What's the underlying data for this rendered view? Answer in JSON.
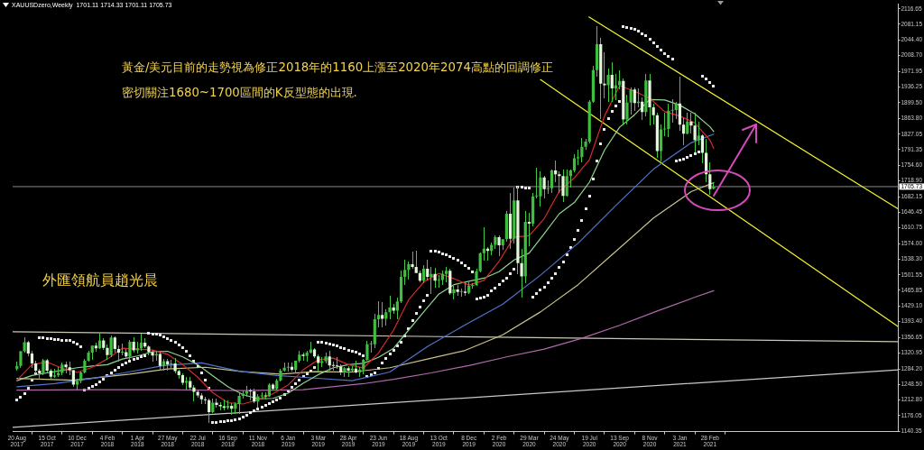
{
  "chart_data": {
    "type": "candlestick",
    "title": "XAUUSDzero,Weekly  1701.11 1714.33 1701.11 1705.73",
    "x": [
      "2017-08-20",
      "2017-08-27",
      "2017-09-03",
      "2017-09-10",
      "2017-09-17",
      "2017-09-24",
      "2017-10-01",
      "2017-10-08",
      "2017-10-15",
      "2017-10-22",
      "2017-10-29",
      "2017-11-05",
      "2017-11-12",
      "2017-11-19",
      "2017-11-26",
      "2017-12-03",
      "2017-12-10",
      "2017-12-17",
      "2017-12-24",
      "2017-12-31",
      "2018-01-07",
      "2018-01-14",
      "2018-01-21",
      "2018-01-28",
      "2018-02-04",
      "2018-02-11",
      "2018-02-18",
      "2018-02-25",
      "2018-03-04",
      "2018-03-11",
      "2018-03-18",
      "2018-03-25",
      "2018-04-01",
      "2018-04-08",
      "2018-04-15",
      "2018-04-22",
      "2018-04-29",
      "2018-05-06",
      "2018-05-13",
      "2018-05-20",
      "2018-05-27",
      "2018-06-03",
      "2018-06-10",
      "2018-06-17",
      "2018-06-24",
      "2018-07-01",
      "2018-07-08",
      "2018-07-15",
      "2018-07-22",
      "2018-07-29",
      "2018-08-05",
      "2018-08-12",
      "2018-08-19",
      "2018-08-26",
      "2018-09-02",
      "2018-09-09",
      "2018-09-16",
      "2018-09-23",
      "2018-09-30",
      "2018-10-07",
      "2018-10-14",
      "2018-10-21",
      "2018-10-28",
      "2018-11-04",
      "2018-11-11",
      "2018-11-18",
      "2018-11-25",
      "2018-12-02",
      "2018-12-09",
      "2018-12-16",
      "2018-12-23",
      "2018-12-30",
      "2019-01-06",
      "2019-01-13",
      "2019-01-20",
      "2019-01-27",
      "2019-02-03",
      "2019-02-10",
      "2019-02-17",
      "2019-02-24",
      "2019-03-03",
      "2019-03-10",
      "2019-03-17",
      "2019-03-24",
      "2019-03-31",
      "2019-04-07",
      "2019-04-14",
      "2019-04-21",
      "2019-04-28",
      "2019-05-05",
      "2019-05-12",
      "2019-05-19",
      "2019-05-26",
      "2019-06-02",
      "2019-06-09",
      "2019-06-16",
      "2019-06-23",
      "2019-06-30",
      "2019-07-07",
      "2019-07-14",
      "2019-07-21",
      "2019-07-28",
      "2019-08-04",
      "2019-08-11",
      "2019-08-18",
      "2019-08-25",
      "2019-09-01",
      "2019-09-08",
      "2019-09-15",
      "2019-09-22",
      "2019-09-29",
      "2019-10-06",
      "2019-10-13",
      "2019-10-20",
      "2019-10-27",
      "2019-11-03",
      "2019-11-10",
      "2019-11-17",
      "2019-11-24",
      "2019-12-01",
      "2019-12-08",
      "2019-12-15",
      "2019-12-22",
      "2019-12-29",
      "2020-01-05",
      "2020-01-12",
      "2020-01-19",
      "2020-01-26",
      "2020-02-02",
      "2020-02-09",
      "2020-02-16",
      "2020-02-23",
      "2020-03-01",
      "2020-03-08",
      "2020-03-15",
      "2020-03-22",
      "2020-03-29",
      "2020-04-05",
      "2020-04-12",
      "2020-04-19",
      "2020-04-26",
      "2020-05-03",
      "2020-05-10",
      "2020-05-17",
      "2020-05-24",
      "2020-05-31",
      "2020-06-07",
      "2020-06-14",
      "2020-06-21",
      "2020-06-28",
      "2020-07-05",
      "2020-07-12",
      "2020-07-19",
      "2020-07-26",
      "2020-08-02",
      "2020-08-09",
      "2020-08-16",
      "2020-08-23",
      "2020-08-30",
      "2020-09-06",
      "2020-09-13",
      "2020-09-20",
      "2020-09-27",
      "2020-10-04",
      "2020-10-11",
      "2020-10-18",
      "2020-10-25",
      "2020-11-01",
      "2020-11-08",
      "2020-11-15",
      "2020-11-22",
      "2020-11-29",
      "2020-12-06",
      "2020-12-13",
      "2020-12-20",
      "2020-12-27",
      "2021-01-03",
      "2021-01-10",
      "2021-01-17",
      "2021-01-24",
      "2021-01-31",
      "2021-02-07",
      "2021-02-14",
      "2021-02-21",
      "2021-02-28",
      "2021-03-07"
    ],
    "xlim": [
      "2017-08-12",
      "2022-02-13"
    ],
    "xticks": [
      {
        "value": "2017-08-20",
        "label": "20 Aug 2017"
      },
      {
        "value": "2017-10-15",
        "label": "15 Oct 2017"
      },
      {
        "value": "2017-12-10",
        "label": "10 Dec 2017"
      },
      {
        "value": "2018-02-04",
        "label": "4 Feb 2018"
      },
      {
        "value": "2018-04-01",
        "label": "1 Apr 2018"
      },
      {
        "value": "2018-05-27",
        "label": "27 May 2018"
      },
      {
        "value": "2018-07-22",
        "label": "22 Jul 2018"
      },
      {
        "value": "2018-09-16",
        "label": "16 Sep 2018"
      },
      {
        "value": "2018-11-11",
        "label": "11 Nov 2018"
      },
      {
        "value": "2019-01-06",
        "label": "6 Jan 2019"
      },
      {
        "value": "2019-03-03",
        "label": "3 Mar 2019"
      },
      {
        "value": "2019-04-28",
        "label": "28 Apr 2019"
      },
      {
        "value": "2019-06-23",
        "label": "23 Jun 2019"
      },
      {
        "value": "2019-08-18",
        "label": "18 Aug 2019"
      },
      {
        "value": "2019-10-13",
        "label": "13 Oct 2019"
      },
      {
        "value": "2019-12-08",
        "label": "8 Dec 2019"
      },
      {
        "value": "2020-02-02",
        "label": "2 Feb 2020"
      },
      {
        "value": "2020-03-29",
        "label": "29 Mar 2020"
      },
      {
        "value": "2020-05-24",
        "label": "24 May 2020"
      },
      {
        "value": "2020-07-19",
        "label": "19 Jul 2020"
      },
      {
        "value": "2020-09-13",
        "label": "13 Sep 2020"
      },
      {
        "value": "2020-11-08",
        "label": "8 Nov 2020"
      },
      {
        "value": "2021-01-03",
        "label": "3 Jan 2021"
      },
      {
        "value": "2021-02-28",
        "label": "28 Feb 2021"
      }
    ],
    "ylim": [
      1139,
      2127
    ],
    "yticks": [
      2116.65,
      2081.15,
      {
        "value": 2044.4,
        "label": "2044.40"
      },
      {
        "value": 2008.7,
        "label": "2008.70"
      },
      1971.95,
      1936.25,
      {
        "value": 1899.5,
        "label": "1899.50"
      },
      {
        "value": 1863.8,
        "label": "1863.80"
      },
      1827.05,
      1791.35,
      {
        "value": 1754.6,
        "label": "1754.60"
      },
      {
        "value": 1718.9,
        "label": "1718.90"
      },
      1682.15,
      1646.45,
      1610.75,
      {
        "value": 1574,
        "label": "1574.00"
      },
      {
        "value": 1538.3,
        "label": "1538.30"
      },
      1501.55,
      1465.85,
      {
        "value": 1429.1,
        "label": "1429.10"
      },
      {
        "value": 1393.4,
        "label": "1393.40"
      },
      1356.65,
      1320.95,
      {
        "value": 1284.2,
        "label": "1284.20"
      },
      {
        "value": 1248.5,
        "label": "1248.50"
      },
      {
        "value": 1212.8,
        "label": "1212.80"
      },
      1176.05,
      1140.35
    ],
    "series": [
      {
        "color": "#44c844",
        "ohlc": [
          [
            1284,
            1300,
            1282,
            1291
          ],
          [
            1291,
            1326,
            1288,
            1325
          ],
          [
            1325,
            1357,
            1323,
            1346
          ],
          [
            1346,
            1348,
            1315,
            1320
          ],
          [
            1320,
            1326,
            1288,
            1297
          ],
          [
            1297,
            1302,
            1276,
            1280
          ],
          [
            1280,
            1283,
            1260,
            1274
          ],
          [
            1274,
            1306,
            1271,
            1304
          ],
          [
            1304,
            1306,
            1278,
            1280
          ],
          [
            1280,
            1283,
            1262,
            1266
          ],
          [
            1266,
            1283,
            1264,
            1269
          ],
          [
            1269,
            1288,
            1267,
            1275
          ],
          [
            1275,
            1297,
            1270,
            1294
          ],
          [
            1294,
            1299,
            1276,
            1288
          ],
          [
            1288,
            1299,
            1271,
            1281
          ],
          [
            1281,
            1282,
            1244,
            1248
          ],
          [
            1248,
            1260,
            1236,
            1256
          ],
          [
            1256,
            1277,
            1253,
            1276
          ],
          [
            1276,
            1306,
            1274,
            1303
          ],
          [
            1303,
            1326,
            1302,
            1322
          ],
          [
            1322,
            1338,
            1307,
            1338
          ],
          [
            1338,
            1344,
            1326,
            1332
          ],
          [
            1332,
            1366,
            1331,
            1350
          ],
          [
            1350,
            1355,
            1330,
            1333
          ],
          [
            1333,
            1340,
            1307,
            1316
          ],
          [
            1316,
            1361,
            1312,
            1357
          ],
          [
            1357,
            1358,
            1322,
            1330
          ],
          [
            1330,
            1338,
            1303,
            1322
          ],
          [
            1322,
            1341,
            1316,
            1323
          ],
          [
            1323,
            1329,
            1308,
            1313
          ],
          [
            1313,
            1350,
            1306,
            1347
          ],
          [
            1347,
            1356,
            1322,
            1327
          ],
          [
            1327,
            1345,
            1321,
            1332
          ],
          [
            1332,
            1365,
            1327,
            1345
          ],
          [
            1345,
            1354,
            1334,
            1336
          ],
          [
            1336,
            1338,
            1316,
            1323
          ],
          [
            1323,
            1327,
            1302,
            1315
          ],
          [
            1315,
            1326,
            1305,
            1319
          ],
          [
            1319,
            1322,
            1284,
            1291
          ],
          [
            1291,
            1307,
            1282,
            1302
          ],
          [
            1302,
            1307,
            1281,
            1294
          ],
          [
            1294,
            1304,
            1286,
            1297
          ],
          [
            1297,
            1309,
            1274,
            1279
          ],
          [
            1279,
            1281,
            1262,
            1270
          ],
          [
            1270,
            1272,
            1247,
            1252
          ],
          [
            1252,
            1265,
            1238,
            1256
          ],
          [
            1256,
            1265,
            1237,
            1241
          ],
          [
            1241,
            1246,
            1211,
            1231
          ],
          [
            1231,
            1236,
            1218,
            1223
          ],
          [
            1223,
            1227,
            1204,
            1214
          ],
          [
            1214,
            1218,
            1205,
            1212
          ],
          [
            1212,
            1214,
            1160,
            1184
          ],
          [
            1184,
            1214,
            1184,
            1206
          ],
          [
            1206,
            1214,
            1196,
            1201
          ],
          [
            1201,
            1207,
            1190,
            1198
          ],
          [
            1198,
            1212,
            1189,
            1194
          ],
          [
            1194,
            1211,
            1191,
            1199
          ],
          [
            1199,
            1204,
            1180,
            1192
          ],
          [
            1192,
            1207,
            1182,
            1203
          ],
          [
            1203,
            1226,
            1182,
            1222
          ],
          [
            1222,
            1233,
            1217,
            1227
          ],
          [
            1227,
            1243,
            1220,
            1233
          ],
          [
            1233,
            1237,
            1212,
            1232
          ],
          [
            1232,
            1237,
            1206,
            1209
          ],
          [
            1209,
            1225,
            1196,
            1221
          ],
          [
            1221,
            1230,
            1216,
            1222
          ],
          [
            1222,
            1230,
            1214,
            1221
          ],
          [
            1221,
            1250,
            1221,
            1248
          ],
          [
            1248,
            1250,
            1235,
            1238
          ],
          [
            1238,
            1260,
            1236,
            1257
          ],
          [
            1257,
            1283,
            1256,
            1280
          ],
          [
            1280,
            1298,
            1279,
            1287
          ],
          [
            1287,
            1298,
            1280,
            1289
          ],
          [
            1289,
            1298,
            1280,
            1282
          ],
          [
            1282,
            1303,
            1276,
            1303
          ],
          [
            1303,
            1326,
            1300,
            1317
          ],
          [
            1317,
            1320,
            1304,
            1314
          ],
          [
            1314,
            1325,
            1302,
            1322
          ],
          [
            1322,
            1346,
            1321,
            1329
          ],
          [
            1329,
            1331,
            1311,
            1313
          ],
          [
            1313,
            1316,
            1280,
            1298
          ],
          [
            1298,
            1311,
            1290,
            1302
          ],
          [
            1302,
            1320,
            1298,
            1313
          ],
          [
            1313,
            1325,
            1281,
            1292
          ],
          [
            1292,
            1300,
            1281,
            1291
          ],
          [
            1291,
            1310,
            1286,
            1290
          ],
          [
            1290,
            1293,
            1270,
            1276
          ],
          [
            1276,
            1288,
            1266,
            1286
          ],
          [
            1286,
            1290,
            1266,
            1280
          ],
          [
            1280,
            1290,
            1279,
            1285
          ],
          [
            1285,
            1303,
            1274,
            1276
          ],
          [
            1276,
            1287,
            1267,
            1283
          ],
          [
            1283,
            1306,
            1272,
            1305
          ],
          [
            1305,
            1348,
            1305,
            1341
          ],
          [
            1341,
            1348,
            1323,
            1341
          ],
          [
            1341,
            1411,
            1333,
            1399
          ],
          [
            1399,
            1439,
            1382,
            1409
          ],
          [
            1409,
            1437,
            1381,
            1400
          ],
          [
            1400,
            1420,
            1386,
            1415
          ],
          [
            1415,
            1453,
            1401,
            1426
          ],
          [
            1426,
            1433,
            1413,
            1419
          ],
          [
            1419,
            1449,
            1400,
            1440
          ],
          [
            1440,
            1510,
            1438,
            1497
          ],
          [
            1497,
            1535,
            1480,
            1513
          ],
          [
            1513,
            1531,
            1492,
            1526
          ],
          [
            1526,
            1555,
            1516,
            1520
          ],
          [
            1520,
            1557,
            1506,
            1506
          ],
          [
            1506,
            1511,
            1485,
            1488
          ],
          [
            1488,
            1523,
            1484,
            1516
          ],
          [
            1516,
            1535,
            1489,
            1497
          ],
          [
            1497,
            1519,
            1459,
            1504
          ],
          [
            1504,
            1516,
            1473,
            1488
          ],
          [
            1488,
            1500,
            1474,
            1490
          ],
          [
            1490,
            1511,
            1480,
            1504
          ],
          [
            1504,
            1518,
            1485,
            1511
          ],
          [
            1511,
            1514,
            1456,
            1459
          ],
          [
            1459,
            1475,
            1445,
            1468
          ],
          [
            1468,
            1478,
            1455,
            1462
          ],
          [
            1462,
            1469,
            1452,
            1463
          ],
          [
            1463,
            1484,
            1455,
            1460
          ],
          [
            1460,
            1484,
            1458,
            1476
          ],
          [
            1476,
            1481,
            1470,
            1478
          ],
          [
            1478,
            1514,
            1477,
            1510
          ],
          [
            1510,
            1553,
            1509,
            1552
          ],
          [
            1552,
            1611,
            1536,
            1562
          ],
          [
            1562,
            1564,
            1536,
            1557
          ],
          [
            1557,
            1576,
            1549,
            1571
          ],
          [
            1571,
            1591,
            1563,
            1589
          ],
          [
            1589,
            1592,
            1547,
            1570
          ],
          [
            1570,
            1584,
            1561,
            1584
          ],
          [
            1584,
            1649,
            1580,
            1643
          ],
          [
            1643,
            1689,
            1563,
            1585
          ],
          [
            1585,
            1703,
            1576,
            1674
          ],
          [
            1674,
            1704,
            1504,
            1529
          ],
          [
            1529,
            1561,
            1451,
            1498
          ],
          [
            1498,
            1648,
            1483,
            1624
          ],
          [
            1624,
            1645,
            1568,
            1620
          ],
          [
            1620,
            1690,
            1615,
            1683
          ],
          [
            1683,
            1748,
            1680,
            1683
          ],
          [
            1683,
            1739,
            1661,
            1727
          ],
          [
            1727,
            1729,
            1680,
            1700
          ],
          [
            1700,
            1720,
            1689,
            1702
          ],
          [
            1702,
            1745,
            1692,
            1743
          ],
          [
            1743,
            1765,
            1716,
            1734
          ],
          [
            1734,
            1740,
            1692,
            1730
          ],
          [
            1730,
            1744,
            1671,
            1684
          ],
          [
            1684,
            1745,
            1683,
            1730
          ],
          [
            1730,
            1745,
            1704,
            1743
          ],
          [
            1743,
            1779,
            1741,
            1771
          ],
          [
            1771,
            1789,
            1757,
            1774
          ],
          [
            1774,
            1818,
            1763,
            1798
          ],
          [
            1798,
            1815,
            1792,
            1810
          ],
          [
            1810,
            1904,
            1807,
            1902
          ],
          [
            1902,
            1984,
            1900,
            1975
          ],
          [
            1975,
            2075,
            1961,
            2035
          ],
          [
            2035,
            2049,
            1863,
            1944
          ],
          [
            1944,
            2015,
            1911,
            1940
          ],
          [
            1940,
            1977,
            1902,
            1964
          ],
          [
            1964,
            1992,
            1902,
            1933
          ],
          [
            1933,
            1966,
            1906,
            1940
          ],
          [
            1940,
            1973,
            1932,
            1950
          ],
          [
            1950,
            1955,
            1848,
            1861
          ],
          [
            1861,
            1917,
            1851,
            1900
          ],
          [
            1900,
            1933,
            1873,
            1930
          ],
          [
            1930,
            1933,
            1882,
            1899
          ],
          [
            1899,
            1932,
            1890,
            1902
          ],
          [
            1902,
            1911,
            1860,
            1878
          ],
          [
            1878,
            1965,
            1869,
            1951
          ],
          [
            1951,
            1965,
            1849,
            1889
          ],
          [
            1889,
            1897,
            1850,
            1871
          ],
          [
            1871,
            1875,
            1774,
            1788
          ],
          [
            1788,
            1848,
            1764,
            1838
          ],
          [
            1838,
            1875,
            1823,
            1839
          ],
          [
            1839,
            1896,
            1821,
            1881
          ],
          [
            1881,
            1906,
            1855,
            1883
          ],
          [
            1883,
            1900,
            1864,
            1898
          ],
          [
            1898,
            1959,
            1835,
            1849
          ],
          [
            1849,
            1864,
            1803,
            1828
          ],
          [
            1828,
            1875,
            1828,
            1856
          ],
          [
            1856,
            1875,
            1830,
            1847
          ],
          [
            1847,
            1875,
            1785,
            1813
          ],
          [
            1813,
            1855,
            1803,
            1824
          ],
          [
            1824,
            1825,
            1760,
            1784
          ],
          [
            1784,
            1815,
            1717,
            1734
          ],
          [
            1734,
            1760,
            1687,
            1700
          ],
          [
            1701.11,
            1714.33,
            1701.11,
            1705.73
          ]
        ],
        "colors": [
          "#3fbf3f",
          "#3fbf3f",
          "#3fbf3f",
          "#e4f7dc",
          "#e4f7dc",
          "#e4f7dc",
          "#e4f7dc",
          "#3fbf3f",
          "#e4f7dc",
          "#e4f7dc",
          "#3fbf3f",
          "#3fbf3f",
          "#3fbf3f",
          "#e4f7dc",
          "#e4f7dc",
          "#e4f7dc",
          "#3fbf3f",
          "#3fbf3f",
          "#3fbf3f",
          "#3fbf3f",
          "#3fbf3f",
          "#e4f7dc",
          "#3fbf3f",
          "#e4f7dc",
          "#e4f7dc",
          "#3fbf3f",
          "#e4f7dc",
          "#e4f7dc",
          "#3fbf3f",
          "#e4f7dc",
          "#3fbf3f",
          "#e4f7dc",
          "#3fbf3f",
          "#3fbf3f",
          "#e4f7dc",
          "#e4f7dc",
          "#e4f7dc",
          "#3fbf3f",
          "#e4f7dc",
          "#3fbf3f",
          "#e4f7dc",
          "#3fbf3f",
          "#e4f7dc",
          "#e4f7dc",
          "#e4f7dc",
          "#3fbf3f",
          "#e4f7dc",
          "#e4f7dc",
          "#e4f7dc",
          "#e4f7dc",
          "#e4f7dc",
          "#e4f7dc",
          "#3fbf3f",
          "#e4f7dc",
          "#e4f7dc",
          "#e4f7dc",
          "#3fbf3f",
          "#e4f7dc",
          "#3fbf3f",
          "#3fbf3f",
          "#3fbf3f",
          "#3fbf3f",
          "#e4f7dc",
          "#e4f7dc",
          "#3fbf3f",
          "#3fbf3f",
          "#e4f7dc",
          "#3fbf3f",
          "#e4f7dc",
          "#3fbf3f",
          "#3fbf3f",
          "#3fbf3f",
          "#3fbf3f",
          "#e4f7dc",
          "#3fbf3f",
          "#3fbf3f",
          "#e4f7dc",
          "#3fbf3f",
          "#3fbf3f",
          "#e4f7dc",
          "#e4f7dc",
          "#3fbf3f",
          "#3fbf3f",
          "#e4f7dc",
          "#e4f7dc",
          "#e4f7dc",
          "#e4f7dc",
          "#3fbf3f",
          "#e4f7dc",
          "#3fbf3f",
          "#e4f7dc",
          "#3fbf3f",
          "#3fbf3f",
          "#3fbf3f",
          "#3fbf3f",
          "#3fbf3f",
          "#3fbf3f",
          "#e4f7dc",
          "#3fbf3f",
          "#3fbf3f",
          "#e4f7dc",
          "#3fbf3f",
          "#3fbf3f",
          "#3fbf3f",
          "#3fbf3f",
          "#e4f7dc",
          "#e4f7dc",
          "#e4f7dc",
          "#3fbf3f",
          "#e4f7dc",
          "#3fbf3f",
          "#e4f7dc",
          "#3fbf3f",
          "#3fbf3f",
          "#3fbf3f",
          "#e4f7dc",
          "#3fbf3f",
          "#e4f7dc",
          "#3fbf3f",
          "#e4f7dc",
          "#3fbf3f",
          "#3fbf3f",
          "#3fbf3f",
          "#3fbf3f",
          "#3fbf3f",
          "#e4f7dc",
          "#3fbf3f",
          "#3fbf3f",
          "#e4f7dc",
          "#3fbf3f",
          "#3fbf3f",
          "#e4f7dc",
          "#3fbf3f",
          "#e4f7dc",
          "#e4f7dc",
          "#3fbf3f",
          "#e4f7dc",
          "#3fbf3f",
          "#3fbf3f",
          "#3fbf3f",
          "#e4f7dc",
          "#3fbf3f",
          "#3fbf3f",
          "#e4f7dc",
          "#e4f7dc",
          "#e4f7dc",
          "#3fbf3f",
          "#3fbf3f",
          "#3fbf3f",
          "#3fbf3f",
          "#3fbf3f",
          "#3fbf3f",
          "#3fbf3f",
          "#3fbf3f",
          "#3fbf3f",
          "#e4f7dc",
          "#e4f7dc",
          "#3fbf3f",
          "#e4f7dc",
          "#3fbf3f",
          "#3fbf3f",
          "#e4f7dc",
          "#3fbf3f",
          "#3fbf3f",
          "#e4f7dc",
          "#3fbf3f",
          "#e4f7dc",
          "#3fbf3f",
          "#e4f7dc",
          "#e4f7dc",
          "#e4f7dc",
          "#3fbf3f",
          "#3fbf3f",
          "#3fbf3f",
          "#3fbf3f",
          "#3fbf3f",
          "#e4f7dc",
          "#e4f7dc",
          "#3fbf3f",
          "#e4f7dc",
          "#e4f7dc",
          "#3fbf3f",
          "#e4f7dc",
          "#e4f7dc",
          "#e4f7dc",
          "#3fbf3f"
        ]
      },
      {
        "type": "line",
        "color": "#d42a2a",
        "x": [
          "2017-08-20",
          "2017-09-17",
          "2017-10-15",
          "2017-11-12",
          "2017-12-10",
          "2018-01-07",
          "2018-02-04",
          "2018-03-04",
          "2018-04-01",
          "2018-04-29",
          "2018-05-27",
          "2018-06-24",
          "2018-07-22",
          "2018-08-19",
          "2018-09-16",
          "2018-10-14",
          "2018-11-11",
          "2018-12-09",
          "2019-01-06",
          "2019-02-03",
          "2019-03-03",
          "2019-03-31",
          "2019-04-28",
          "2019-05-26",
          "2019-06-23",
          "2019-07-21",
          "2019-08-18",
          "2019-09-15",
          "2019-10-13",
          "2019-11-10",
          "2019-12-08",
          "2020-01-05",
          "2020-02-02",
          "2020-03-01",
          "2020-03-29",
          "2020-04-26",
          "2020-05-24",
          "2020-06-21",
          "2020-07-19",
          "2020-08-16",
          "2020-09-13",
          "2020-10-11",
          "2020-11-08",
          "2020-12-06",
          "2021-01-03",
          "2021-01-31",
          "2021-02-28",
          "2021-03-07"
        ],
        "values": [
          1258,
          1294,
          1300,
          1286,
          1276,
          1288,
          1307,
          1332,
          1330,
          1328,
          1318,
          1294,
          1265,
          1229,
          1206,
          1203,
          1213,
          1227,
          1247,
          1282,
          1305,
          1309,
          1294,
          1286,
          1321,
          1374,
          1444,
          1485,
          1505,
          1493,
          1478,
          1489,
          1533,
          1589,
          1592,
          1632,
          1695,
          1726,
          1768,
          1869,
          1939,
          1926,
          1910,
          1879,
          1869,
          1853,
          1813,
          1794
        ]
      },
      {
        "type": "line",
        "color": "#8fd68f",
        "x": [
          "2017-08-20",
          "2017-09-17",
          "2017-10-15",
          "2017-11-12",
          "2017-12-10",
          "2018-01-07",
          "2018-02-04",
          "2018-03-04",
          "2018-04-01",
          "2018-04-29",
          "2018-05-27",
          "2018-06-24",
          "2018-07-22",
          "2018-08-19",
          "2018-09-16",
          "2018-10-14",
          "2018-11-11",
          "2018-12-09",
          "2019-01-06",
          "2019-02-03",
          "2019-03-03",
          "2019-03-31",
          "2019-04-28",
          "2019-05-26",
          "2019-06-23",
          "2019-07-21",
          "2019-08-18",
          "2019-09-15",
          "2019-10-13",
          "2019-11-10",
          "2019-12-08",
          "2020-01-05",
          "2020-02-02",
          "2020-03-01",
          "2020-03-29",
          "2020-04-26",
          "2020-05-24",
          "2020-06-21",
          "2020-07-19",
          "2020-08-16",
          "2020-09-13",
          "2020-10-11",
          "2020-11-08",
          "2020-12-06",
          "2021-01-03",
          "2021-01-31",
          "2021-02-28",
          "2021-03-07"
        ],
        "values": [
          1257,
          1269,
          1275,
          1281,
          1287,
          1291,
          1294,
          1307,
          1314,
          1324,
          1325,
          1312,
          1294,
          1268,
          1243,
          1225,
          1215,
          1216,
          1228,
          1251,
          1271,
          1287,
          1294,
          1297,
          1311,
          1332,
          1374,
          1416,
          1457,
          1479,
          1487,
          1494,
          1509,
          1536,
          1552,
          1597,
          1643,
          1669,
          1716,
          1790,
          1843,
          1872,
          1907,
          1906,
          1894,
          1874,
          1844,
          1833
        ]
      },
      {
        "type": "line",
        "color": "#4f74c8",
        "x": [
          "2017-08-20",
          "2017-10-29",
          "2018-01-07",
          "2018-03-11",
          "2018-05-20",
          "2018-07-29",
          "2018-10-07",
          "2018-12-16",
          "2019-02-24",
          "2019-05-05",
          "2019-07-14",
          "2019-09-22",
          "2019-12-01",
          "2020-02-09",
          "2020-04-19",
          "2020-06-28",
          "2020-09-06",
          "2020-11-15",
          "2021-01-24",
          "2021-03-07"
        ],
        "values": [
          1243,
          1250,
          1262,
          1276,
          1292,
          1298,
          1279,
          1269,
          1263,
          1257,
          1277,
          1336,
          1386,
          1434,
          1501,
          1575,
          1662,
          1746,
          1807,
          1827
        ]
      },
      {
        "type": "line",
        "color": "#c9c28a",
        "x": [
          "2017-08-20",
          "2017-12-03",
          "2018-03-18",
          "2018-05-27",
          "2018-08-05",
          "2018-10-14",
          "2018-12-23",
          "2019-02-24",
          "2019-05-05",
          "2019-07-14",
          "2019-09-22",
          "2019-12-01",
          "2020-02-09",
          "2020-04-19",
          "2020-06-28",
          "2020-09-06",
          "2020-11-15",
          "2021-01-24",
          "2021-03-07"
        ],
        "values": [
          1262,
          1258,
          1272,
          1284,
          1288,
          1278,
          1272,
          1278,
          1277,
          1287,
          1307,
          1327,
          1363,
          1416,
          1479,
          1556,
          1633,
          1694,
          1715
        ]
      },
      {
        "type": "line",
        "color": "#b06aa8",
        "x": [
          "2017-08-20",
          "2018-01-07",
          "2018-05-27",
          "2018-10-14",
          "2019-02-03",
          "2019-05-26",
          "2019-07-21",
          "2019-09-29",
          "2019-12-08",
          "2020-02-16",
          "2020-04-26",
          "2020-07-05",
          "2020-09-13",
          "2020-11-22",
          "2021-01-31",
          "2021-03-07"
        ],
        "values": [
          1235,
          1236,
          1236,
          1234,
          1236,
          1250,
          1260,
          1275,
          1292,
          1312,
          1330,
          1355,
          1385,
          1418,
          1450,
          1465
        ]
      },
      {
        "type": "scatter",
        "color": "#e8e8e8",
        "marker": "square",
        "values": [
          1212,
          1218,
          1226,
          1240,
          1258,
          1272,
          1357,
          1356,
          1355,
          1354,
          1353,
          1352,
          1351,
          1350,
          1349,
          1346,
          1342,
          1336,
          1236,
          1239,
          1243,
          1248,
          1254,
          1261,
          1268,
          1275,
          1282,
          1288,
          1293,
          1298,
          1302,
          1306,
          1309,
          1312,
          1315,
          1366,
          1365,
          1364,
          1362,
          1359,
          1355,
          1351,
          1346,
          1340,
          1333,
          1324,
          1314,
          1303,
          1290,
          1275,
          1259,
          1240,
          1160,
          1161,
          1162,
          1163,
          1164,
          1165,
          1167,
          1169,
          1172,
          1177,
          1183,
          1188,
          1192,
          1196,
          1200,
          1204,
          1208,
          1212,
          1217,
          1225,
          1233,
          1241,
          1249,
          1258,
          1266,
          1273,
          1280,
          1287,
          1346,
          1345,
          1343,
          1341,
          1339,
          1337,
          1334,
          1331,
          1328,
          1325,
          1322,
          1318,
          1314,
          1266,
          1270,
          1275,
          1285,
          1297,
          1308,
          1318,
          1328,
          1337,
          1346,
          1360,
          1378,
          1395,
          1412,
          1428,
          1442,
          1455,
          1557,
          1556,
          1554,
          1551,
          1548,
          1544,
          1540,
          1535,
          1529,
          1523,
          1516,
          1509,
          1445,
          1447,
          1450,
          1455,
          1465,
          1472,
          1480,
          1487,
          1494,
          1505,
          1515,
          1704,
          1704,
          1703,
          1702,
          1451,
          1458,
          1466,
          1474,
          1483,
          1493,
          1505,
          1518,
          1532,
          1548,
          1565,
          1584,
          1605,
          1628,
          1654,
          1684,
          1723,
          1765,
          1805,
          1838,
          1862,
          1880,
          1893,
          1903,
          2075,
          2074,
          2072,
          2069,
          2065,
          2060,
          2054,
          2047,
          2039,
          2030,
          2022,
          2014,
          2007,
          2000,
          1764,
          1767,
          1770,
          1773,
          1777,
          1781,
          1786,
          1961,
          1955,
          1946,
          1938
        ]
      },
      {
        "type": "line",
        "color": "#f2f230",
        "x": [
          "2020-07-18",
          "2022-02-13"
        ],
        "values": [
          2098,
          1654
        ]
      },
      {
        "type": "line",
        "color": "#f2f230",
        "x": [
          "2020-04-19",
          "2022-02-13"
        ],
        "values": [
          1953,
          1382
        ]
      },
      {
        "type": "line",
        "color": "#c8c8b4",
        "x": [
          "2017-08-12",
          "2022-02-13"
        ],
        "values": [
          1370,
          1347
        ]
      },
      {
        "type": "line",
        "color": "#c8c8c8",
        "x": [
          "2017-08-12",
          "2022-02-13"
        ],
        "values": [
          1149,
          1282
        ]
      }
    ],
    "ref_lines": [
      {
        "axis": "y",
        "value": 1705.73,
        "label": "1705.73",
        "color": "#8a8a8a"
      }
    ],
    "annotations": [
      "黃金/美元目前的走勢視為修正2018年的1160上漲至2020年2074高點的回調修正",
      "密切關注1680~1700區間的K反型態的出現.",
      "外匯領航員趙光晨"
    ]
  }
}
